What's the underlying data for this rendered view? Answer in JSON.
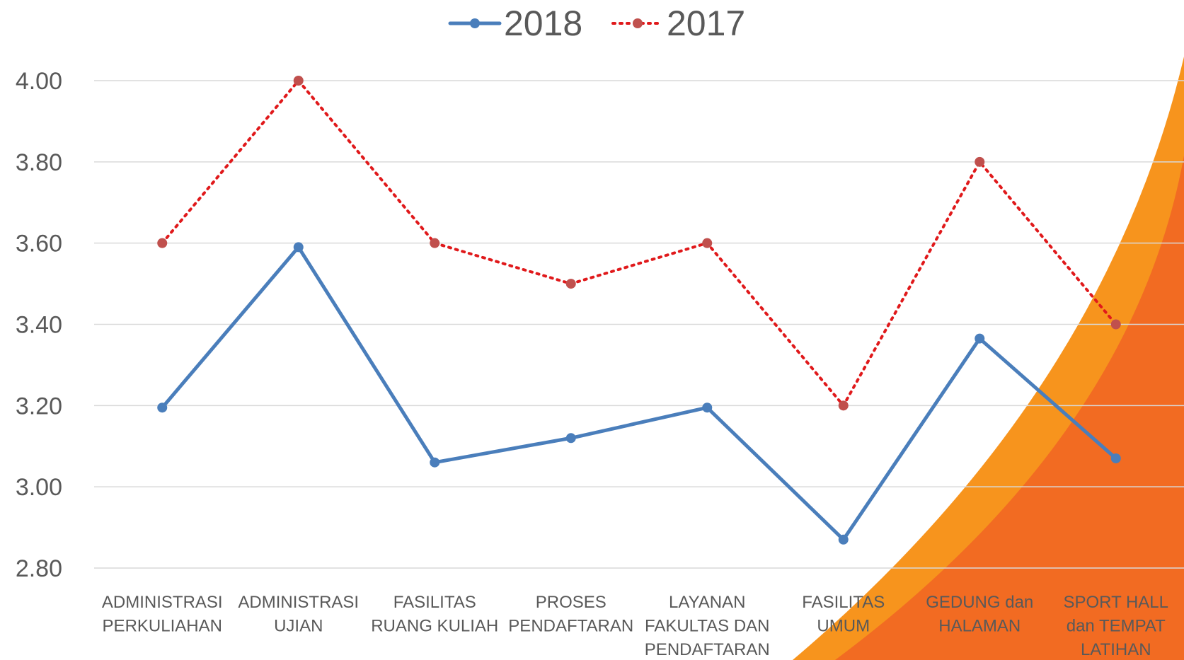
{
  "chart_data": {
    "type": "line",
    "categories": [
      "ADMINISTRASI\nPERKULIAHAN",
      "ADMINISTRASI\nUJIAN",
      "FASILITAS\nRUANG KULIAH",
      "PROSES\nPENDAFTARAN",
      "LAYANAN\nFAKULTAS DAN\nPENDAFTARAN",
      "FASILITAS\nUMUM",
      "GEDUNG dan\nHALAMAN",
      "SPORT HALL\ndan TEMPAT\nLATIHAN"
    ],
    "series": [
      {
        "name": "2018",
        "color": "#4a7ebb",
        "style": "solid",
        "values": [
          3.195,
          3.59,
          3.06,
          3.12,
          3.195,
          2.87,
          3.365,
          3.07
        ]
      },
      {
        "name": "2017",
        "color": "#e0191b",
        "marker_color": "#c0504d",
        "style": "dotted",
        "values": [
          3.6,
          4.0,
          3.6,
          3.5,
          3.6,
          3.2,
          3.8,
          3.4
        ]
      }
    ],
    "ylim": [
      2.8,
      4.0
    ],
    "yticks": [
      {
        "value": 2.8,
        "label": "2.80"
      },
      {
        "value": 3.0,
        "label": "3.00"
      },
      {
        "value": 3.2,
        "label": "3.20"
      },
      {
        "value": 3.4,
        "label": "3.40"
      },
      {
        "value": 3.6,
        "label": "3.60"
      },
      {
        "value": 3.8,
        "label": "3.80"
      },
      {
        "value": 4.0,
        "label": "4.00"
      }
    ],
    "grid": true,
    "legend": "top"
  }
}
